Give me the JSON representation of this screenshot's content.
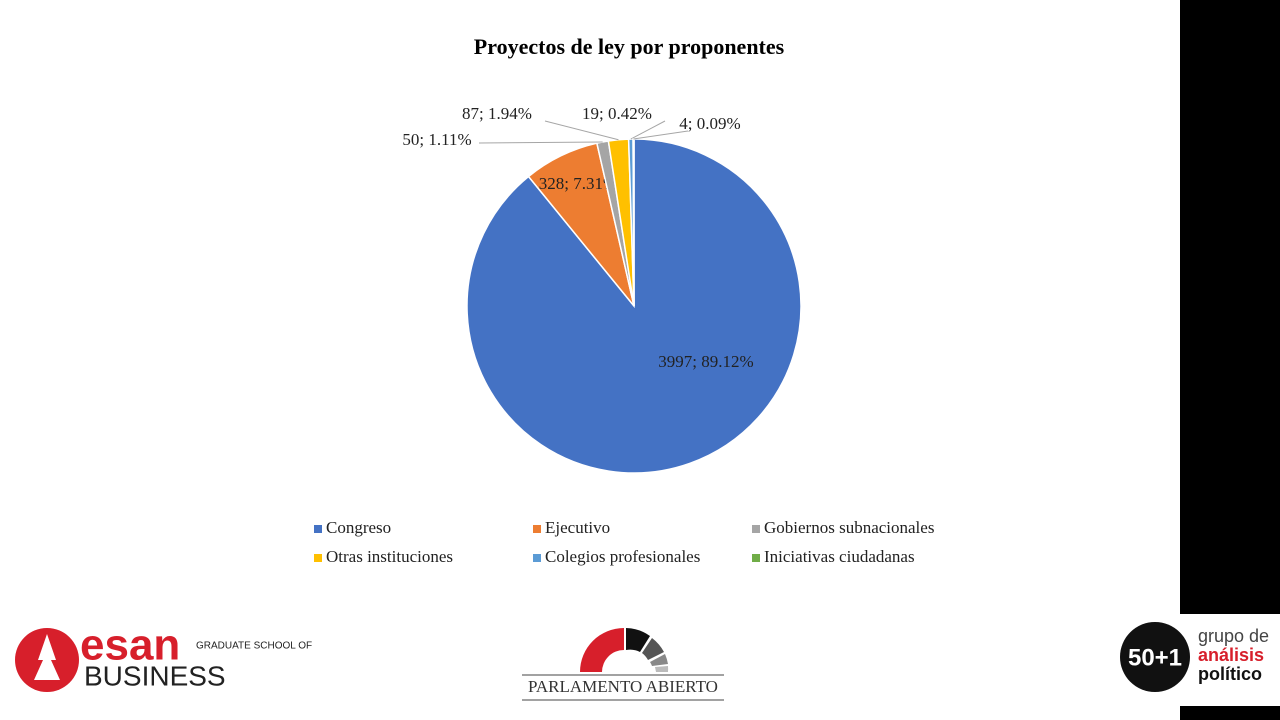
{
  "chart_data": {
    "type": "pie",
    "title": "Proyectos de ley por proponentes",
    "categories": [
      "Congreso",
      "Ejecutivo",
      "Gobiernos subnacionales",
      "Otras instituciones",
      "Colegios profesionales",
      "Iniciativas ciudadanas"
    ],
    "values": [
      3997,
      328,
      50,
      87,
      19,
      4
    ],
    "value_labels": [
      "3997; 89.12%",
      "328; 7.31%",
      "50; 1.11%",
      "87; 1.94%",
      "19; 0.42%",
      "4; 0.09%"
    ],
    "colors": [
      "#4472c4",
      "#ed7d31",
      "#a5a5a5",
      "#ffc000",
      "#5b9bd5",
      "#70ad47"
    ],
    "legend": "bottom"
  },
  "logos": {
    "esan": "esan",
    "esan_sub": "GRADUATE SCHOOL OF",
    "esan_business": "BUSINESS",
    "parlamento": "PARLAMENTO ABIERTO",
    "grupo_num": "50+1",
    "grupo_1": "grupo de",
    "grupo_2": "análisis",
    "grupo_3": "político"
  }
}
